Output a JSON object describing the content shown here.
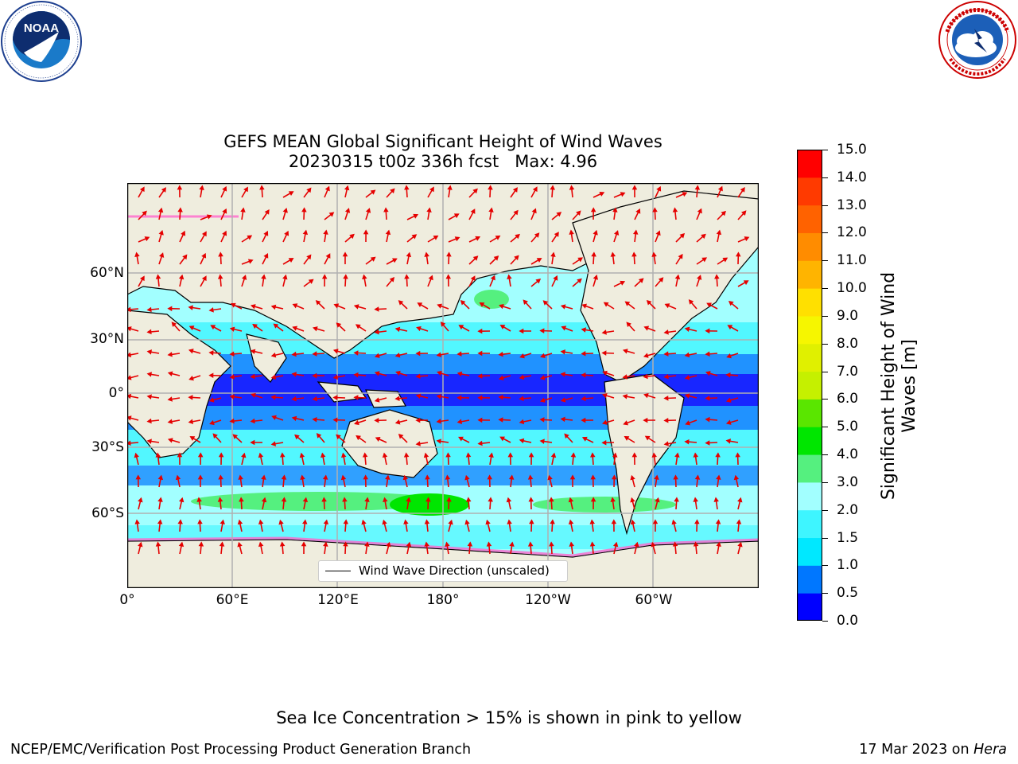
{
  "logos": {
    "noaa": {
      "text": "NOAA",
      "ring_text": "NATIONAL OCEANIC AND ATMOSPHERIC ADMINISTRATION · U.S. DEPARTMENT OF COMMERCE"
    },
    "nws": {
      "ring_text": "NATIONAL WEATHER SERVICE"
    }
  },
  "title": {
    "line1": "GEFS MEAN Global Significant Height of Wind Waves",
    "line2": "20230315 t00z 336h fcst   Max: 4.96"
  },
  "map": {
    "lat_labels": [
      "60°N",
      "30°N",
      "0°",
      "30°S",
      "60°S"
    ],
    "lon_labels": [
      "0°",
      "60°E",
      "120°E",
      "180°",
      "120°W",
      "60°W"
    ],
    "legend": "Wind Wave Direction (unscaled)",
    "colors": {
      "land": "#efedde",
      "arrow": "#e50000",
      "grid": "#b0b0b0"
    }
  },
  "colorbar": {
    "label": "Significant Height of Wind Waves [m]",
    "label_line1": "Significant Height of Wind",
    "label_line2": "Waves [m]",
    "ticks": [
      "0.0",
      "0.5",
      "1.0",
      "1.5",
      "2.0",
      "3.0",
      "4.0",
      "5.0",
      "6.0",
      "7.0",
      "8.0",
      "9.0",
      "10.0",
      "11.0",
      "12.0",
      "13.0",
      "14.0",
      "15.0"
    ],
    "colors": [
      "#0000ff",
      "#0077ff",
      "#00e8ff",
      "#3ef5ff",
      "#a2ffff",
      "#55f07f",
      "#00e600",
      "#5ae600",
      "#c5f000",
      "#e0f000",
      "#f6f600",
      "#ffe000",
      "#ffb400",
      "#ff8c00",
      "#ff6200",
      "#ff3a00",
      "#ff0000"
    ]
  },
  "footer": {
    "note": "Sea Ice Concentration > 15% is shown in pink to yellow",
    "left": "NCEP/EMC/Verification Post Processing Product Generation Branch",
    "right_prefix": "17 Mar 2023 on ",
    "right_machine": "Hera"
  }
}
